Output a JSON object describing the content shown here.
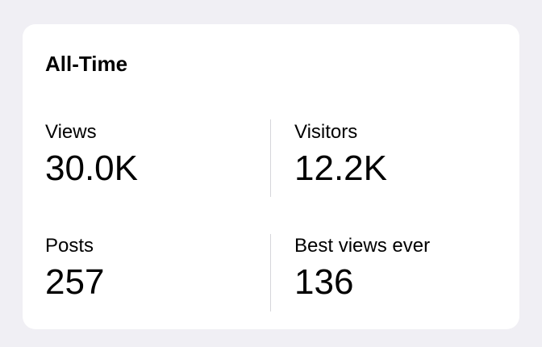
{
  "card": {
    "title": "All-Time",
    "stats": [
      {
        "label": "Views",
        "value": "30.0K"
      },
      {
        "label": "Visitors",
        "value": "12.2K"
      },
      {
        "label": "Posts",
        "value": "257"
      },
      {
        "label": "Best views ever",
        "value": "136"
      }
    ]
  }
}
